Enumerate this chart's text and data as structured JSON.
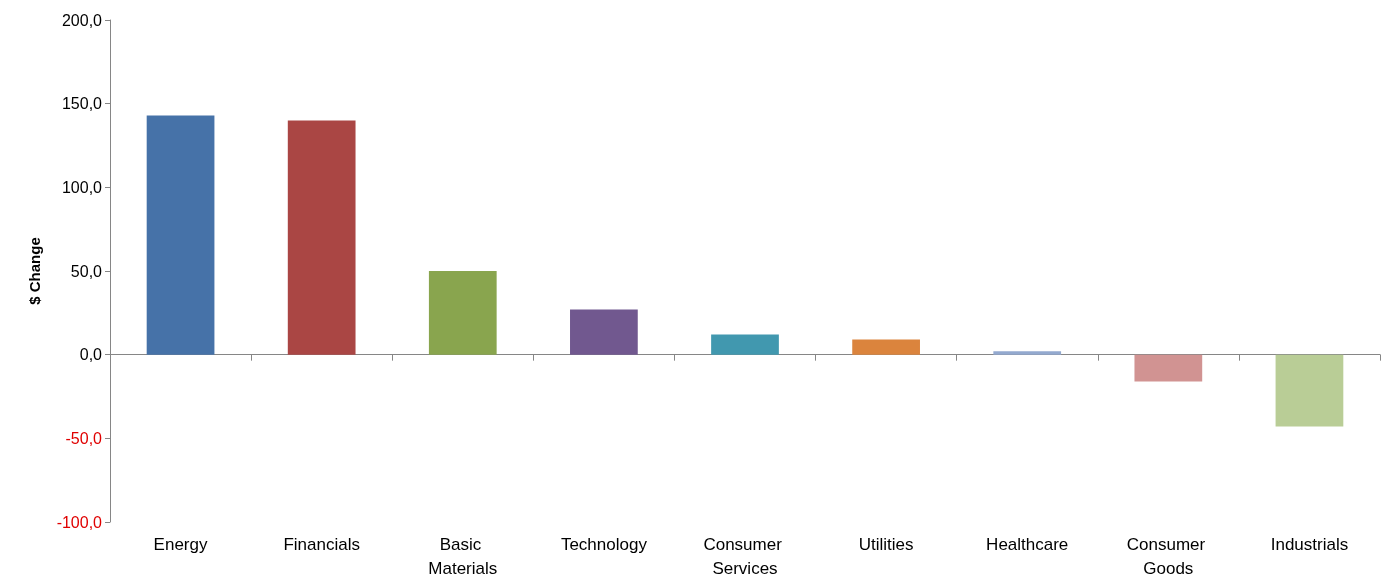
{
  "chart_data": {
    "type": "bar",
    "ylabel": "$ Change",
    "categories": [
      "Energy",
      "Financials",
      "Basic Materials",
      "Technology",
      "Consumer Services",
      "Utilities",
      "Healthcare",
      "Consumer Goods",
      "Industrials"
    ],
    "values": [
      143,
      140,
      50,
      27,
      12,
      9,
      2,
      -16,
      -43
    ],
    "colors": [
      "#4672a8",
      "#aa4644",
      "#89a54e",
      "#71588f",
      "#4198af",
      "#db843d",
      "#93a9cf",
      "#d19392",
      "#b9cd96"
    ],
    "ylim": [
      -100,
      200
    ],
    "yticks": [
      {
        "value": -100,
        "label": "-100,0"
      },
      {
        "value": -50,
        "label": "-50,0"
      },
      {
        "value": 0,
        "label": "0,0"
      },
      {
        "value": 50,
        "label": "50,0"
      },
      {
        "value": 100,
        "label": "100,0"
      },
      {
        "value": 150,
        "label": "150,0"
      },
      {
        "value": 200,
        "label": "200,0"
      }
    ]
  }
}
